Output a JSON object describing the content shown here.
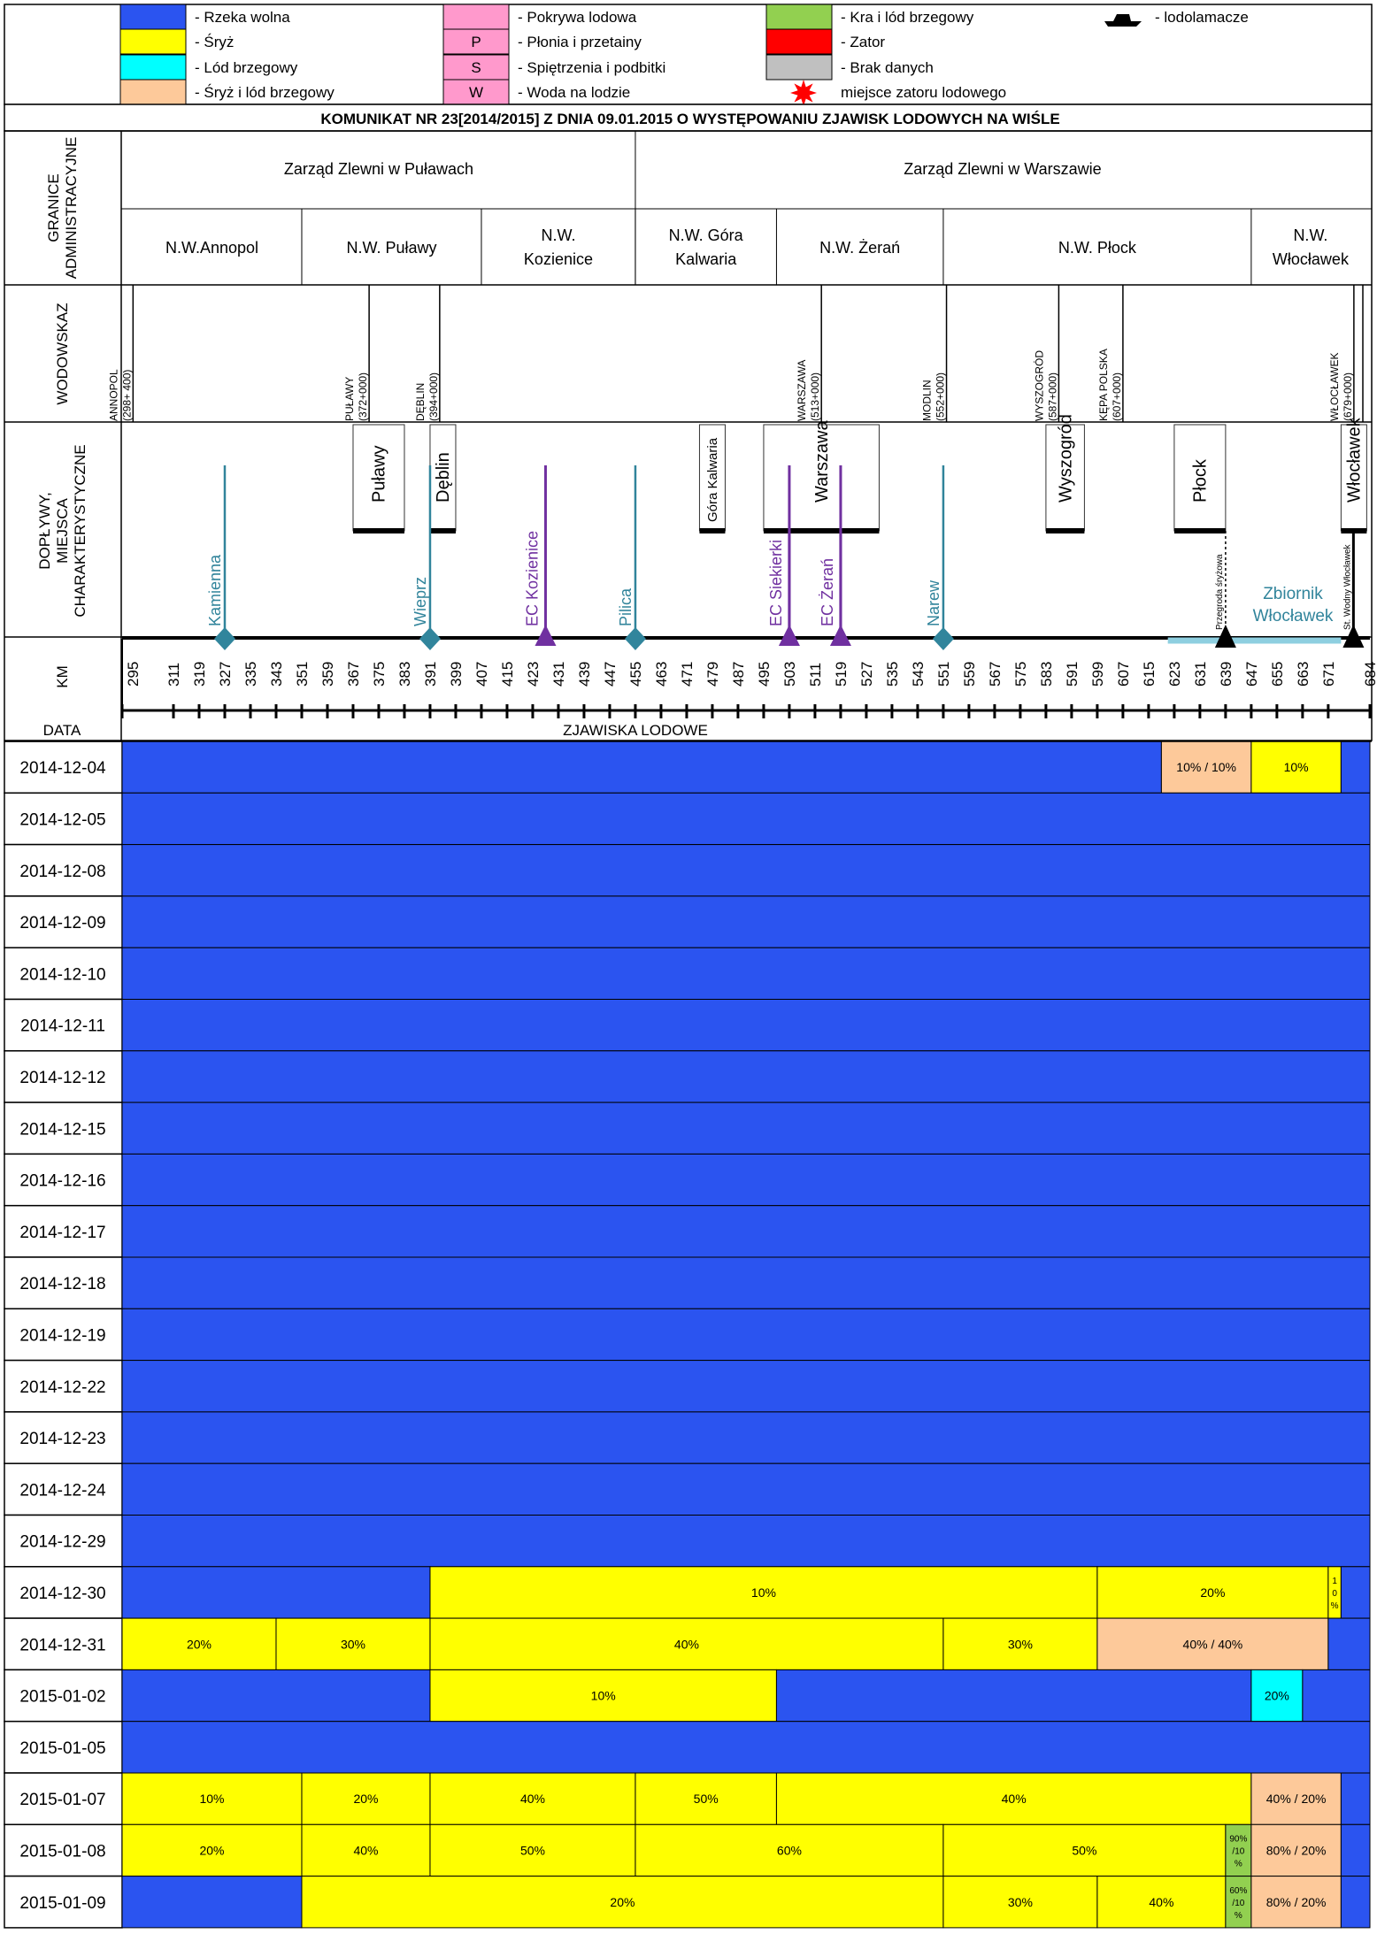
{
  "legend": [
    {
      "key": "free",
      "color": "#2b54f0",
      "symbol": "",
      "text": "- Rzeka wolna"
    },
    {
      "key": "sryz",
      "color": "#ffff00",
      "symbol": "",
      "text": "- Śryż"
    },
    {
      "key": "lod_brzeg",
      "color": "#00ffff",
      "symbol": "",
      "text": "- Lód brzegowy"
    },
    {
      "key": "sryz_lod",
      "color": "#fdc99a",
      "symbol": "",
      "text": "- Śryż i lód brzegowy"
    },
    {
      "key": "pokrywa",
      "color": "#ff99cc",
      "symbol": "",
      "text": "- Pokrywa lodowa"
    },
    {
      "key": "plonia",
      "color": "#ff99cc",
      "symbol": "P",
      "text": "- Płonia i przetainy"
    },
    {
      "key": "spietrzenia",
      "color": "#ff99cc",
      "symbol": "S",
      "text": "- Spiętrzenia i podbitki"
    },
    {
      "key": "woda",
      "color": "#ff99cc",
      "symbol": "W",
      "text": "- Woda na lodzie"
    },
    {
      "key": "kra",
      "color": "#92d050",
      "symbol": "",
      "text": "- Kra i lód brzegowy"
    },
    {
      "key": "zator",
      "color": "#ff0000",
      "symbol": "",
      "text": "- Zator"
    },
    {
      "key": "brak",
      "color": "#c0c0c0",
      "symbol": "",
      "text": "- Brak danych"
    },
    {
      "key": "zator_miejsce",
      "color": "#ff0000",
      "symbol": "star",
      "text": "miejsce zatoru lodowego"
    },
    {
      "key": "lodolamacze",
      "color": "#000000",
      "symbol": "ship",
      "text": "- lodolamacze"
    }
  ],
  "title": "KOMUNIKAT NR 23[2014/2015] Z DNIA 09.01.2015 O WYSTĘPOWANIU ZJAWISK LODOWYCH NA WIŚLE",
  "labels": {
    "granice": [
      "GRANICE",
      "ADMINISTRACYJNE"
    ],
    "wodowskaz": "WODOWSKAZ",
    "doplywy": [
      "DOPŁYWY,",
      "MIEJSCA",
      "CHARAKTERYSTYCZNE"
    ],
    "km": "KM",
    "data": "DATA",
    "zjawiska": "ZJAWISKA LODOWE"
  },
  "zarzady": [
    {
      "name": "Zarząd Zlewni w Puławach",
      "km_from": 295,
      "km_to": 455
    },
    {
      "name": "Zarząd Zlewni w Warszawie",
      "km_from": 455,
      "km_to": 684
    }
  ],
  "nadzory": [
    {
      "name": "N.W.Annopol",
      "km_from": 295,
      "km_to": 351
    },
    {
      "name": "N.W. Puławy",
      "km_from": 351,
      "km_to": 407
    },
    {
      "name": "N.W. Kozienice",
      "km_from": 407,
      "km_to": 455
    },
    {
      "name": "N.W. Góra Kalwaria",
      "km_from": 455,
      "km_to": 499
    },
    {
      "name": "N.W. Żerań",
      "km_from": 499,
      "km_to": 551
    },
    {
      "name": "N.W. Płock",
      "km_from": 551,
      "km_to": 647
    },
    {
      "name": "N.W. Włocławek",
      "km_from": 647,
      "km_to": 684
    }
  ],
  "wodowskazy": [
    {
      "name": "ANNOPOL",
      "km_label": "(298+ 400)",
      "km": 298.4
    },
    {
      "name": "PUŁAWY",
      "km_label": "(372+000)",
      "km": 372
    },
    {
      "name": "DĘBLIN",
      "km_label": "(394+000)",
      "km": 394
    },
    {
      "name": "WARSZAWA",
      "km_label": "(513+000)",
      "km": 513
    },
    {
      "name": "MODLIN",
      "km_label": "(552+000)",
      "km": 552
    },
    {
      "name": "WYSZOGRÓD",
      "km_label": "(587+000)",
      "km": 587
    },
    {
      "name": "KĘPA POLSKA",
      "km_label": "(607+000)",
      "km": 607
    },
    {
      "name": "WŁOCŁAWEK",
      "km_label": "(679+000)",
      "km": 679
    }
  ],
  "miasta": [
    {
      "name": "Puławy",
      "km_from": 367,
      "km_to": 383
    },
    {
      "name": "Dęblin",
      "km_from": 391,
      "km_to": 399
    },
    {
      "name": "Góra Kalwaria",
      "km_from": 475,
      "km_to": 483
    },
    {
      "name": "Warszawa",
      "km_from": 495,
      "km_to": 531
    },
    {
      "name": "Wyszogród",
      "km_from": 583,
      "km_to": 595
    },
    {
      "name": "Płock",
      "km_from": 623,
      "km_to": 639
    },
    {
      "name": "Włocławek",
      "km_from": 675,
      "km_to": 683
    }
  ],
  "doplywy": [
    {
      "name": "Kamienna",
      "km": 327,
      "kind": "river"
    },
    {
      "name": "Wieprz",
      "km": 391,
      "kind": "river"
    },
    {
      "name": "EC Kozienice",
      "km": 427,
      "kind": "plant"
    },
    {
      "name": "Pilica",
      "km": 455,
      "kind": "river"
    },
    {
      "name": "EC Siekierki",
      "km": 503,
      "kind": "plant"
    },
    {
      "name": "EC Żerań",
      "km": 519,
      "kind": "plant"
    },
    {
      "name": "Narew",
      "km": 551,
      "kind": "river"
    }
  ],
  "obiekty": [
    {
      "name": "Przegroda śryżowa",
      "km": 639
    },
    {
      "name": "St. Wodny Włocławek",
      "km": 675
    }
  ],
  "zbiornik": {
    "name": "Zbiornik Włocławek",
    "km_from": 621,
    "km_to": 675
  },
  "km_ticks": [
    295,
    311,
    319,
    327,
    335,
    343,
    351,
    359,
    367,
    375,
    383,
    391,
    399,
    407,
    415,
    423,
    431,
    439,
    447,
    455,
    463,
    471,
    479,
    487,
    495,
    503,
    511,
    519,
    527,
    535,
    543,
    551,
    559,
    567,
    575,
    583,
    591,
    599,
    607,
    615,
    623,
    631,
    639,
    647,
    655,
    663,
    671,
    684
  ],
  "chart_data": {
    "type": "table",
    "title": "KOMUNIKAT NR 23[2014/2015] Z DNIA 09.01.2015 O WYSTĘPOWANIU ZJAWISK LODOWYCH NA WIŚLE",
    "xlabel": "KM",
    "ylabel": "DATA",
    "xlim": [
      295,
      684
    ],
    "rows": [
      {
        "date": "2014-12-04",
        "segments": [
          {
            "from": 295,
            "to": 619,
            "type": "free",
            "label": ""
          },
          {
            "from": 619,
            "to": 647,
            "type": "sryz_lod",
            "label": "10% / 10%"
          },
          {
            "from": 647,
            "to": 675,
            "type": "sryz",
            "label": "10%"
          },
          {
            "from": 675,
            "to": 684,
            "type": "free",
            "label": ""
          }
        ]
      },
      {
        "date": "2014-12-05",
        "segments": [
          {
            "from": 295,
            "to": 684,
            "type": "free",
            "label": ""
          }
        ]
      },
      {
        "date": "2014-12-08",
        "segments": [
          {
            "from": 295,
            "to": 684,
            "type": "free",
            "label": ""
          }
        ]
      },
      {
        "date": "2014-12-09",
        "segments": [
          {
            "from": 295,
            "to": 684,
            "type": "free",
            "label": ""
          }
        ]
      },
      {
        "date": "2014-12-10",
        "segments": [
          {
            "from": 295,
            "to": 684,
            "type": "free",
            "label": ""
          }
        ]
      },
      {
        "date": "2014-12-11",
        "segments": [
          {
            "from": 295,
            "to": 684,
            "type": "free",
            "label": ""
          }
        ]
      },
      {
        "date": "2014-12-12",
        "segments": [
          {
            "from": 295,
            "to": 684,
            "type": "free",
            "label": ""
          }
        ]
      },
      {
        "date": "2014-12-15",
        "segments": [
          {
            "from": 295,
            "to": 684,
            "type": "free",
            "label": ""
          }
        ]
      },
      {
        "date": "2014-12-16",
        "segments": [
          {
            "from": 295,
            "to": 684,
            "type": "free",
            "label": ""
          }
        ]
      },
      {
        "date": "2014-12-17",
        "segments": [
          {
            "from": 295,
            "to": 684,
            "type": "free",
            "label": ""
          }
        ]
      },
      {
        "date": "2014-12-18",
        "segments": [
          {
            "from": 295,
            "to": 684,
            "type": "free",
            "label": ""
          }
        ]
      },
      {
        "date": "2014-12-19",
        "segments": [
          {
            "from": 295,
            "to": 684,
            "type": "free",
            "label": ""
          }
        ]
      },
      {
        "date": "2014-12-22",
        "segments": [
          {
            "from": 295,
            "to": 684,
            "type": "free",
            "label": ""
          }
        ]
      },
      {
        "date": "2014-12-23",
        "segments": [
          {
            "from": 295,
            "to": 684,
            "type": "free",
            "label": ""
          }
        ]
      },
      {
        "date": "2014-12-24",
        "segments": [
          {
            "from": 295,
            "to": 684,
            "type": "free",
            "label": ""
          }
        ]
      },
      {
        "date": "2014-12-29",
        "segments": [
          {
            "from": 295,
            "to": 684,
            "type": "free",
            "label": ""
          }
        ]
      },
      {
        "date": "2014-12-30",
        "segments": [
          {
            "from": 295,
            "to": 391,
            "type": "free",
            "label": ""
          },
          {
            "from": 391,
            "to": 599,
            "type": "sryz",
            "label": "10%"
          },
          {
            "from": 599,
            "to": 671,
            "type": "sryz",
            "label": "20%"
          },
          {
            "from": 671,
            "to": 675,
            "type": "sryz",
            "label": "10%"
          },
          {
            "from": 675,
            "to": 684,
            "type": "free",
            "label": ""
          }
        ]
      },
      {
        "date": "2014-12-31",
        "segments": [
          {
            "from": 295,
            "to": 343,
            "type": "sryz",
            "label": "20%"
          },
          {
            "from": 343,
            "to": 391,
            "type": "sryz",
            "label": "30%"
          },
          {
            "from": 391,
            "to": 551,
            "type": "sryz",
            "label": "40%"
          },
          {
            "from": 551,
            "to": 599,
            "type": "sryz",
            "label": "30%"
          },
          {
            "from": 599,
            "to": 671,
            "type": "sryz_lod",
            "label": "40% / 40%"
          },
          {
            "from": 671,
            "to": 684,
            "type": "free",
            "label": ""
          }
        ]
      },
      {
        "date": "2015-01-02",
        "segments": [
          {
            "from": 295,
            "to": 391,
            "type": "free",
            "label": ""
          },
          {
            "from": 391,
            "to": 499,
            "type": "sryz",
            "label": "10%"
          },
          {
            "from": 499,
            "to": 647,
            "type": "free",
            "label": ""
          },
          {
            "from": 647,
            "to": 663,
            "type": "lod_brzeg",
            "label": "20%"
          },
          {
            "from": 663,
            "to": 684,
            "type": "free",
            "label": ""
          }
        ]
      },
      {
        "date": "2015-01-05",
        "segments": [
          {
            "from": 295,
            "to": 684,
            "type": "free",
            "label": ""
          }
        ]
      },
      {
        "date": "2015-01-07",
        "segments": [
          {
            "from": 295,
            "to": 351,
            "type": "sryz",
            "label": "10%"
          },
          {
            "from": 351,
            "to": 391,
            "type": "sryz",
            "label": "20%"
          },
          {
            "from": 391,
            "to": 455,
            "type": "sryz",
            "label": "40%"
          },
          {
            "from": 455,
            "to": 499,
            "type": "sryz",
            "label": "50%"
          },
          {
            "from": 499,
            "to": 647,
            "type": "sryz",
            "label": "40%"
          },
          {
            "from": 647,
            "to": 675,
            "type": "sryz_lod",
            "label": "40% / 20%"
          },
          {
            "from": 675,
            "to": 684,
            "type": "free",
            "label": ""
          }
        ]
      },
      {
        "date": "2015-01-08",
        "segments": [
          {
            "from": 295,
            "to": 351,
            "type": "sryz",
            "label": "20%"
          },
          {
            "from": 351,
            "to": 391,
            "type": "sryz",
            "label": "40%"
          },
          {
            "from": 391,
            "to": 455,
            "type": "sryz",
            "label": "50%"
          },
          {
            "from": 455,
            "to": 551,
            "type": "sryz",
            "label": "60%"
          },
          {
            "from": 551,
            "to": 639,
            "type": "sryz",
            "label": "50%"
          },
          {
            "from": 639,
            "to": 647,
            "type": "kra",
            "label": "90% /10 %"
          },
          {
            "from": 647,
            "to": 675,
            "type": "sryz_lod",
            "label": "80% / 20%"
          },
          {
            "from": 675,
            "to": 684,
            "type": "free",
            "label": ""
          }
        ]
      },
      {
        "date": "2015-01-09",
        "segments": [
          {
            "from": 295,
            "to": 351,
            "type": "free",
            "label": ""
          },
          {
            "from": 351,
            "to": 551,
            "type": "sryz",
            "label": "20%"
          },
          {
            "from": 551,
            "to": 599,
            "type": "sryz",
            "label": "30%"
          },
          {
            "from": 599,
            "to": 639,
            "type": "sryz",
            "label": "40%"
          },
          {
            "from": 639,
            "to": 647,
            "type": "kra",
            "label": "60% /10 %"
          },
          {
            "from": 647,
            "to": 675,
            "type": "sryz_lod",
            "label": "80% / 20%"
          },
          {
            "from": 675,
            "to": 684,
            "type": "free",
            "label": ""
          }
        ]
      }
    ]
  }
}
